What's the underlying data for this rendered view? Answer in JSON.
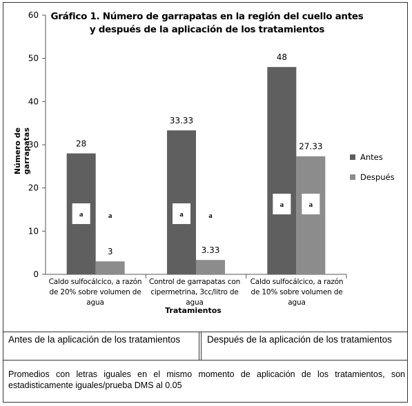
{
  "chart_data": {
    "type": "bar",
    "title": "Gráfico 1. Número de garrapatas en la región del cuello antes y después de la aplicación de los tratamientos",
    "xlabel": "Tratamientos",
    "ylabel": "Número de garrapatas",
    "ylim": [
      0,
      60
    ],
    "yticks": [
      "0",
      "10",
      "20",
      "30",
      "40",
      "50",
      "60"
    ],
    "categories": [
      "Caldo sulfocálcico, a razón de 20% sobre volumen de agua",
      "Control de garrapatas con cipermetrina, 3cc/litro de agua",
      "Caldo sulfocálcico, a razón de 10% sobre volumen de agua"
    ],
    "series": [
      {
        "name": "Antes",
        "color": "#5f5f5f",
        "values": [
          28,
          33.33,
          48
        ],
        "labels": [
          "28",
          "33.33",
          "48"
        ],
        "letters": [
          "a",
          "a",
          "a"
        ]
      },
      {
        "name": "Después",
        "color": "#8c8c8c",
        "values": [
          3,
          3.33,
          27.33
        ],
        "labels": [
          "3",
          "3.33",
          "27.33"
        ],
        "letters": [
          "a",
          "a",
          "a"
        ]
      }
    ],
    "grid": false,
    "legend_position": "right"
  },
  "table": {
    "before_label": "Antes de la aplicación de los tratamientos",
    "after_label": "Después de la aplicación de los tratamientos",
    "note": "Promedios con letras iguales en el mismo momento de aplicación de los tratamientos, son estadisticamente iguales/prueba DMS al 0.05"
  }
}
